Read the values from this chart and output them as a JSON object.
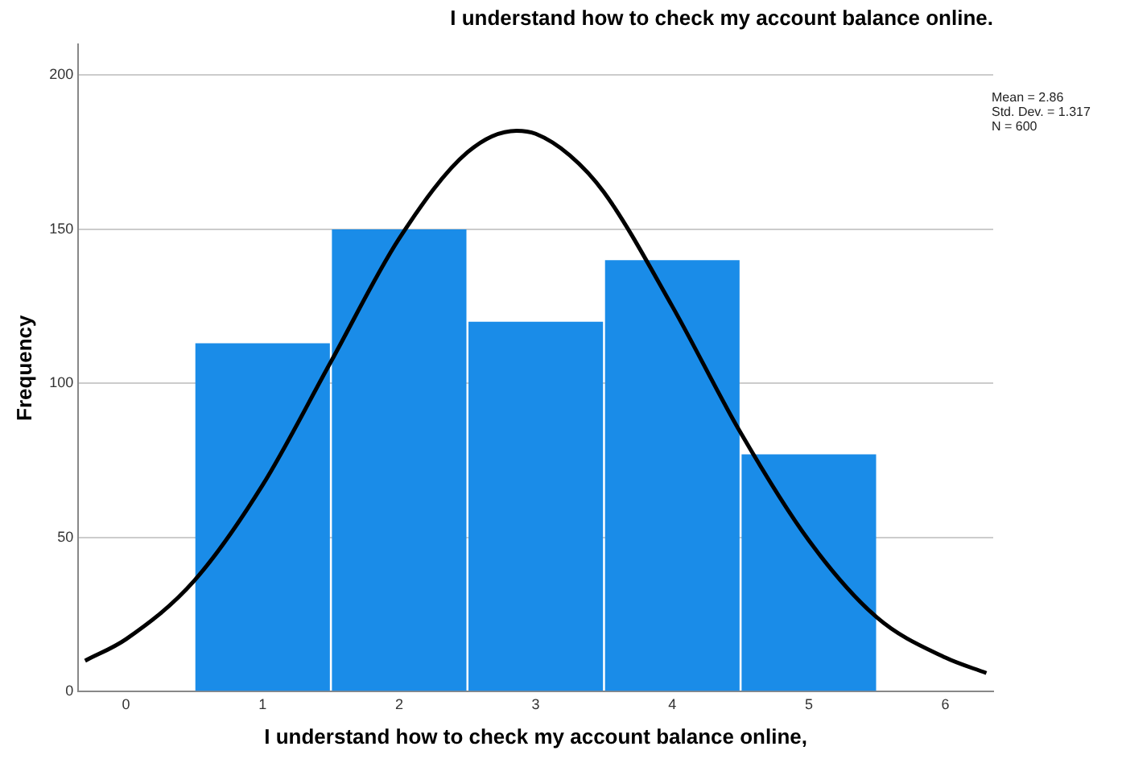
{
  "chart_data": {
    "type": "histogram",
    "title": "I understand how to check my account balance online.",
    "xlabel": "I understand how to check my account balance online,",
    "ylabel": "Frequency",
    "bins": [
      0.5,
      1.5,
      2.5,
      3.5,
      4.5,
      5.5
    ],
    "values": [
      113,
      150,
      120,
      140,
      77
    ],
    "color": "#1a8ce8",
    "series": [
      {
        "type": "line",
        "color": "#000000",
        "x": [
          -0.3,
          0,
          0.5,
          1,
          1.5,
          2,
          2.5,
          2.86,
          3,
          3.25,
          3.5,
          4,
          4.5,
          5,
          5.5,
          6,
          6.3
        ],
        "values": [
          10,
          17,
          36,
          67,
          107,
          147,
          175,
          182,
          181,
          174,
          162,
          125,
          84,
          49,
          24,
          11,
          6
        ]
      }
    ],
    "xlim": [
      -0.35,
      6.35
    ],
    "xticks": [
      0,
      1,
      2,
      3,
      4,
      5,
      6
    ],
    "ylim": [
      0,
      210
    ],
    "yticks": [
      0,
      50,
      100,
      150,
      200
    ],
    "grid": "y",
    "marker": "none",
    "annotations": [
      "Mean = 2.86",
      "Std. Dev. = 1.317",
      "N = 600"
    ]
  }
}
